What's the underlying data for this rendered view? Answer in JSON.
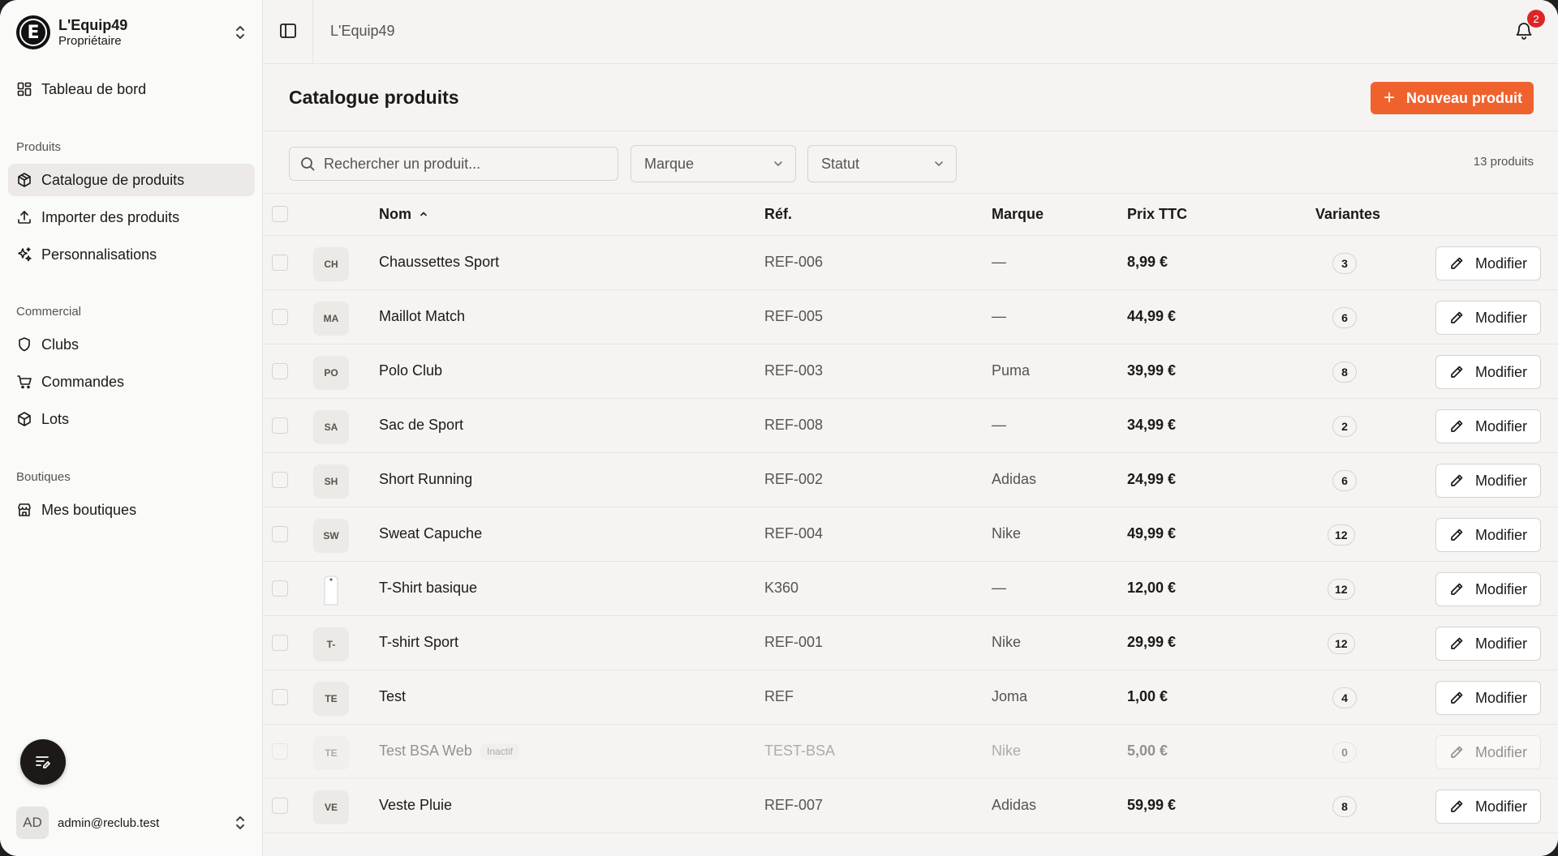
{
  "org": {
    "name": "L'Equip49",
    "role": "Propriétaire",
    "logo_letter": "E"
  },
  "nav": {
    "dashboard": "Tableau de bord",
    "section_products": "Produits",
    "catalog": "Catalogue de produits",
    "import": "Importer des produits",
    "customizations": "Personnalisations",
    "section_commercial": "Commercial",
    "clubs": "Clubs",
    "orders": "Commandes",
    "lots": "Lots",
    "section_shops": "Boutiques",
    "my_shops": "Mes boutiques"
  },
  "user": {
    "initials": "AD",
    "email": "admin@reclub.test"
  },
  "topbar": {
    "breadcrumb": "L'Equip49",
    "notifications": "2"
  },
  "header": {
    "title": "Catalogue produits",
    "new_button": "Nouveau produit"
  },
  "filters": {
    "search_placeholder": "Rechercher un produit...",
    "brand": "Marque",
    "status": "Statut",
    "count": "13 produits"
  },
  "table": {
    "columns": {
      "name": "Nom",
      "ref": "Réf.",
      "brand": "Marque",
      "price": "Prix TTC",
      "variants": "Variantes"
    },
    "edit_label": "Modifier",
    "inactive_label": "Inactif",
    "rows": [
      {
        "thumb": "CH",
        "name": "Chaussettes Sport",
        "ref": "REF-006",
        "brand": "—",
        "price": "8,99 €",
        "variants": "3"
      },
      {
        "thumb": "MA",
        "name": "Maillot Match",
        "ref": "REF-005",
        "brand": "—",
        "price": "44,99 €",
        "variants": "6"
      },
      {
        "thumb": "PO",
        "name": "Polo Club",
        "ref": "REF-003",
        "brand": "Puma",
        "price": "39,99 €",
        "variants": "8"
      },
      {
        "thumb": "SA",
        "name": "Sac de Sport",
        "ref": "REF-008",
        "brand": "—",
        "price": "34,99 €",
        "variants": "2"
      },
      {
        "thumb": "SH",
        "name": "Short Running",
        "ref": "REF-002",
        "brand": "Adidas",
        "price": "24,99 €",
        "variants": "6"
      },
      {
        "thumb": "SW",
        "name": "Sweat Capuche",
        "ref": "REF-004",
        "brand": "Nike",
        "price": "49,99 €",
        "variants": "12"
      },
      {
        "thumb": "",
        "name": "T-Shirt basique",
        "ref": "K360",
        "brand": "—",
        "price": "12,00 €",
        "variants": "12",
        "image": true
      },
      {
        "thumb": "T-",
        "name": "T-shirt Sport",
        "ref": "REF-001",
        "brand": "Nike",
        "price": "29,99 €",
        "variants": "12"
      },
      {
        "thumb": "TE",
        "name": "Test",
        "ref": "REF",
        "brand": "Joma",
        "price": "1,00 €",
        "variants": "4"
      },
      {
        "thumb": "TE",
        "name": "Test BSA Web",
        "ref": "TEST-BSA",
        "brand": "Nike",
        "price": "5,00 €",
        "variants": "0",
        "inactive": true
      },
      {
        "thumb": "VE",
        "name": "Veste Pluie",
        "ref": "REF-007",
        "brand": "Adidas",
        "price": "59,99 €",
        "variants": "8"
      }
    ]
  }
}
